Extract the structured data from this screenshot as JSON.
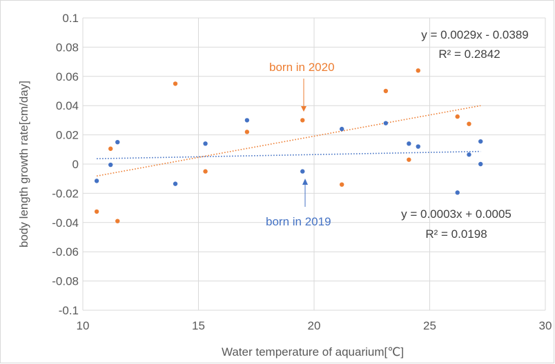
{
  "chart_data": {
    "type": "scatter",
    "xlabel": "Water temperature of aquarium[℃]",
    "ylabel": "body length growth rate[cm/day]",
    "xlim": [
      10,
      30
    ],
    "ylim": [
      -0.1,
      0.1
    ],
    "x_ticks": [
      "10",
      "15",
      "20",
      "25",
      "30"
    ],
    "y_ticks": [
      "0.1",
      "0.08",
      "0.06",
      "0.04",
      "0.02",
      "0",
      "-0.02",
      "-0.04",
      "-0.06",
      "-0.08",
      "-0.1"
    ],
    "grid": true,
    "series": [
      {
        "color": "#4472c4",
        "points": [
          [
            10.6,
            -0.0115
          ],
          [
            11.2,
            -0.0005
          ],
          [
            11.5,
            0.015
          ],
          [
            14.0,
            -0.0135
          ],
          [
            15.3,
            0.014
          ],
          [
            17.1,
            0.03
          ],
          [
            19.5,
            -0.005
          ],
          [
            21.2,
            0.024
          ],
          [
            23.1,
            0.028
          ],
          [
            24.1,
            0.014
          ],
          [
            24.5,
            0.012
          ],
          [
            26.2,
            -0.0195
          ],
          [
            26.7,
            0.0065
          ],
          [
            27.2,
            0.0155
          ],
          [
            27.2,
            0.0
          ]
        ],
        "trendline": {
          "slope": 0.0003,
          "intercept": 0.0005,
          "x_range": [
            10.6,
            27.2
          ],
          "style": "dotted"
        },
        "equation": "y = 0.0003x + 0.0005",
        "r2": "R² = 0.0198"
      },
      {
        "color": "#ed7d31",
        "points": [
          [
            10.6,
            -0.0325
          ],
          [
            11.2,
            0.0105
          ],
          [
            11.5,
            -0.039
          ],
          [
            14.0,
            0.055
          ],
          [
            15.3,
            -0.005
          ],
          [
            17.1,
            0.022
          ],
          [
            19.5,
            0.03
          ],
          [
            21.2,
            -0.014
          ],
          [
            23.1,
            0.05
          ],
          [
            24.1,
            0.003
          ],
          [
            24.5,
            0.064
          ],
          [
            26.2,
            0.0325
          ],
          [
            26.7,
            0.0275
          ]
        ],
        "trendline": {
          "slope": 0.0029,
          "intercept": -0.0389,
          "x_range": [
            10.6,
            27.2
          ],
          "style": "dotted"
        },
        "equation": "y = 0.0029x - 0.0389",
        "r2": "R² = 0.2842"
      }
    ],
    "annotations": [
      {
        "text": "born in 2020",
        "color": "#ed7d31",
        "arrow_to": [
          19.5,
          0.035
        ]
      },
      {
        "text": "born in 2019",
        "color": "#4472c4",
        "arrow_to": [
          19.5,
          -0.01
        ]
      }
    ]
  }
}
